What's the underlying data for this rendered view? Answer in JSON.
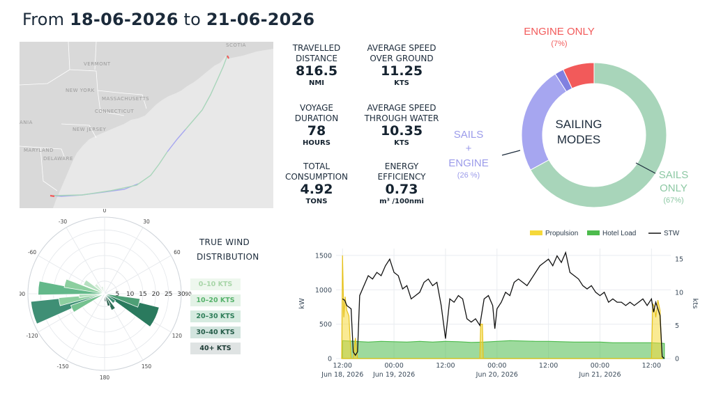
{
  "header": {
    "prefix": "From",
    "date_from": "18-06-2026",
    "connector": "to",
    "date_to": "21-06-2026"
  },
  "map": {
    "labels": [
      "NEW YORK",
      "VERMONT",
      "MASSACHUSETTS",
      "CONNECTICUT",
      "NEW JERSEY",
      "MARYLAND",
      "DELAWARE",
      "SCOTIA",
      "ANIA"
    ],
    "route_colors": {
      "sails": "#a8d5ba",
      "sails_engine": "#a6a6f0",
      "engine": "#f25a5a"
    }
  },
  "stats": {
    "travelled": {
      "label1": "TRAVELLED",
      "label2": "DISTANCE",
      "value": "816.5",
      "unit": "NMI"
    },
    "sog": {
      "label1": "AVERAGE SPEED",
      "label2": "OVER GROUND",
      "value": "11.25",
      "unit": "KTS"
    },
    "duration": {
      "label1": "VOYAGE",
      "label2": "DURATION",
      "value": "78",
      "unit": "HOURS"
    },
    "stw": {
      "label1": "AVERAGE SPEED",
      "label2": "THROUGH WATER",
      "value": "10.35",
      "unit": "KTS"
    },
    "consumption": {
      "label1": "TOTAL",
      "label2": "CONSUMPTION",
      "value": "4.92",
      "unit": "TONS"
    },
    "efficiency": {
      "label1": "ENERGY",
      "label2": "EFFICIENCY",
      "value": "0.73",
      "unit": "m³ /100nmi"
    }
  },
  "sailing_modes": {
    "center_line1": "SAILING",
    "center_line2": "MODES",
    "engine_only": {
      "label": "ENGINE ONLY",
      "pct_text": "(7%)",
      "color": "#f25a5a"
    },
    "sails_engine": {
      "line1": "SAILS",
      "line2": "+",
      "line3": "ENGINE",
      "pct_text": "(26 %)",
      "color": "#a6a6f0"
    },
    "sails_only": {
      "line1": "SAILS",
      "line2": "ONLY",
      "pct_text": "(67%)",
      "color": "#a8d5ba"
    }
  },
  "wind": {
    "title_line1": "TRUE WIND",
    "title_line2": "DISTRIBUTION",
    "angle_labels": [
      "0",
      "30",
      "60",
      "90",
      "120",
      "150",
      "180",
      "-150",
      "-120",
      "-90",
      "-60",
      "-30"
    ],
    "radial_labels": [
      "5",
      "10",
      "15",
      "20",
      "25",
      "30"
    ],
    "legend": [
      {
        "label": "0–10 KTS",
        "bg": "#eef7ee",
        "fg": "#a9d6a9"
      },
      {
        "label": "10–20 KTS",
        "bg": "#e3f2e6",
        "fg": "#56b26b"
      },
      {
        "label": "20–30 KTS",
        "bg": "#d6ebe0",
        "fg": "#2f7e59"
      },
      {
        "label": "30–40 KTS",
        "bg": "#d2e4de",
        "fg": "#235b47"
      },
      {
        "label": "40+ KTS",
        "bg": "#dfe3e3",
        "fg": "#1d3b35"
      }
    ]
  },
  "chart_data": {
    "type": "area",
    "legend": [
      "Propulsion",
      "Hotel Load",
      "STW"
    ],
    "y_left": {
      "label": "kW",
      "ticks": [
        "0",
        "500",
        "1000",
        "1500"
      ],
      "range": [
        0,
        1600
      ]
    },
    "y_right": {
      "label": "kts",
      "ticks": [
        "0",
        "5",
        "10",
        "15"
      ],
      "range": [
        0,
        16.6
      ]
    },
    "x_ticks": [
      {
        "t": 0,
        "top": "12:00",
        "bottom": "Jun 18, 2026"
      },
      {
        "t": 12,
        "top": "00:00",
        "bottom": "Jun 19, 2026"
      },
      {
        "t": 24,
        "top": "12:00",
        "bottom": ""
      },
      {
        "t": 36,
        "top": "00:00",
        "bottom": "Jun 20, 2026"
      },
      {
        "t": 48,
        "top": "12:00",
        "bottom": ""
      },
      {
        "t": 60,
        "top": "00:00",
        "bottom": "Jun 21, 2026"
      },
      {
        "t": 72,
        "top": "12:00",
        "bottom": ""
      }
    ],
    "t_range": [
      -1.5,
      76.5
    ],
    "stw_kts": [
      [
        0,
        9
      ],
      [
        0.5,
        8.8
      ],
      [
        1,
        8
      ],
      [
        2,
        7.5
      ],
      [
        2.5,
        1
      ],
      [
        3,
        0.5
      ],
      [
        3.5,
        1
      ],
      [
        4,
        9.5
      ],
      [
        5,
        11
      ],
      [
        6,
        12.5
      ],
      [
        7,
        12
      ],
      [
        8,
        13
      ],
      [
        9,
        12.5
      ],
      [
        10,
        14
      ],
      [
        11,
        15
      ],
      [
        12,
        13
      ],
      [
        13,
        12.5
      ],
      [
        14,
        10.5
      ],
      [
        15,
        11
      ],
      [
        16,
        9
      ],
      [
        17,
        9.5
      ],
      [
        18,
        10
      ],
      [
        19,
        11.5
      ],
      [
        20,
        12
      ],
      [
        21,
        11
      ],
      [
        22,
        11.5
      ],
      [
        23,
        8
      ],
      [
        24,
        3
      ],
      [
        25,
        9
      ],
      [
        26,
        8.5
      ],
      [
        27,
        9.5
      ],
      [
        28,
        9
      ],
      [
        29,
        6
      ],
      [
        30,
        5.5
      ],
      [
        31,
        6
      ],
      [
        32,
        5
      ],
      [
        33,
        9
      ],
      [
        34,
        9.5
      ],
      [
        35,
        8
      ],
      [
        35.5,
        4.5
      ],
      [
        36,
        7.5
      ],
      [
        37,
        8.5
      ],
      [
        38,
        10
      ],
      [
        39,
        9.5
      ],
      [
        40,
        11.5
      ],
      [
        41,
        12
      ],
      [
        42,
        11.5
      ],
      [
        43,
        11
      ],
      [
        44,
        12
      ],
      [
        45,
        13
      ],
      [
        46,
        14
      ],
      [
        47,
        14.5
      ],
      [
        48,
        15
      ],
      [
        49,
        14
      ],
      [
        50,
        15.5
      ],
      [
        51,
        14.5
      ],
      [
        52,
        16
      ],
      [
        53,
        13
      ],
      [
        54,
        12.5
      ],
      [
        55,
        12
      ],
      [
        56,
        11
      ],
      [
        57,
        10.5
      ],
      [
        58,
        11
      ],
      [
        59,
        10
      ],
      [
        60,
        9.5
      ],
      [
        61,
        10
      ],
      [
        62,
        8.5
      ],
      [
        63,
        9
      ],
      [
        64,
        8.5
      ],
      [
        65,
        8.5
      ],
      [
        66,
        8
      ],
      [
        67,
        8.5
      ],
      [
        68,
        8
      ],
      [
        69,
        8.5
      ],
      [
        70,
        9
      ],
      [
        71,
        8
      ],
      [
        72,
        9
      ],
      [
        72.5,
        7
      ],
      [
        73,
        8.5
      ],
      [
        74,
        6.5
      ],
      [
        74.5,
        0.3
      ],
      [
        75,
        0
      ]
    ],
    "hotel_kw": [
      [
        0,
        260
      ],
      [
        3,
        250
      ],
      [
        6,
        240
      ],
      [
        9,
        250
      ],
      [
        12,
        245
      ],
      [
        15,
        240
      ],
      [
        18,
        250
      ],
      [
        21,
        240
      ],
      [
        24,
        250
      ],
      [
        27,
        245
      ],
      [
        30,
        235
      ],
      [
        33,
        240
      ],
      [
        36,
        250
      ],
      [
        39,
        260
      ],
      [
        42,
        255
      ],
      [
        45,
        250
      ],
      [
        48,
        250
      ],
      [
        51,
        245
      ],
      [
        54,
        240
      ],
      [
        57,
        240
      ],
      [
        60,
        240
      ],
      [
        63,
        230
      ],
      [
        66,
        230
      ],
      [
        69,
        230
      ],
      [
        72,
        230
      ],
      [
        75,
        220
      ]
    ],
    "propulsion_kw": [
      [
        -0.2,
        0
      ],
      [
        0,
        1500
      ],
      [
        0.3,
        600
      ],
      [
        0.6,
        900
      ],
      [
        1,
        700
      ],
      [
        1.5,
        620
      ],
      [
        2,
        0
      ],
      [
        2.5,
        0
      ],
      [
        3,
        300
      ],
      [
        3.5,
        0
      ],
      [
        32,
        0
      ],
      [
        32.2,
        500
      ],
      [
        32.6,
        500
      ],
      [
        32.8,
        0
      ],
      [
        72,
        0
      ],
      [
        72.3,
        800
      ],
      [
        72.7,
        750
      ],
      [
        73,
        600
      ],
      [
        73.5,
        850
      ],
      [
        74,
        700
      ],
      [
        74.5,
        0
      ]
    ],
    "colors": {
      "propulsion": "#f5d83a",
      "hotel": "#4dbb4d",
      "stw": "#111111"
    }
  }
}
